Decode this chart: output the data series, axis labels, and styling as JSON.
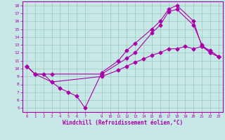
{
  "xlabel": "Windchill (Refroidissement éolien,°C)",
  "bg_color": "#c8e8e8",
  "line_color": "#aa00aa",
  "grid_color": "#99ccbb",
  "axis_bar_color": "#660066",
  "xlim": [
    -0.5,
    23.5
  ],
  "ylim": [
    4.5,
    18.5
  ],
  "xticks": [
    0,
    1,
    2,
    3,
    4,
    5,
    6,
    7,
    9,
    10,
    11,
    12,
    13,
    14,
    15,
    16,
    17,
    18,
    19,
    20,
    21,
    22,
    23
  ],
  "yticks": [
    5,
    6,
    7,
    8,
    9,
    10,
    11,
    12,
    13,
    14,
    15,
    16,
    17,
    18
  ],
  "line1_x": [
    0,
    1,
    2,
    3,
    4,
    5,
    6,
    7,
    9,
    11,
    12,
    13,
    15,
    16,
    17,
    18,
    20,
    21,
    22,
    23
  ],
  "line1_y": [
    10.3,
    9.3,
    9.3,
    8.3,
    7.5,
    7.0,
    6.5,
    5.0,
    9.5,
    11.0,
    12.3,
    13.2,
    15.0,
    16.0,
    17.5,
    18.0,
    16.0,
    12.8,
    12.3,
    11.5
  ],
  "line2_x": [
    0,
    1,
    3,
    9,
    12,
    13,
    15,
    16,
    17,
    18,
    20,
    21,
    22,
    23
  ],
  "line2_y": [
    10.3,
    9.3,
    9.3,
    9.3,
    11.3,
    12.0,
    14.5,
    15.5,
    17.2,
    17.5,
    15.5,
    13.0,
    12.0,
    11.5
  ],
  "line3_x": [
    0,
    1,
    3,
    9,
    11,
    12,
    13,
    14,
    15,
    16,
    17,
    18,
    19,
    20,
    21,
    22,
    23
  ],
  "line3_y": [
    10.3,
    9.3,
    8.3,
    9.0,
    9.8,
    10.3,
    10.8,
    11.2,
    11.7,
    12.0,
    12.5,
    12.5,
    12.8,
    12.5,
    12.8,
    12.0,
    11.5
  ]
}
